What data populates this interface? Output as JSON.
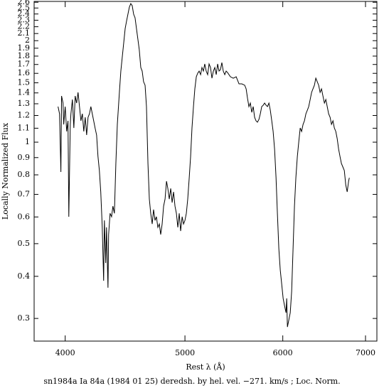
{
  "chart_data": {
    "type": "line",
    "xlabel": "Rest λ (Å)",
    "ylabel": "Locally Normalized Flux",
    "caption": "sn1984a Ia 84a (1984 01 25) deredsh. by hel. vel.  −271. km/s ;  Loc. Norm.",
    "xscale": "log",
    "yscale": "log",
    "xlim": [
      3775,
      7150
    ],
    "ylim": [
      0.257,
      2.615
    ],
    "xticks": [
      4000,
      5000,
      6000,
      7000
    ],
    "yticks": [
      0.3,
      0.4,
      0.5,
      0.6,
      0.7,
      0.8,
      0.9,
      1,
      1.1,
      1.2,
      1.3,
      1.4,
      1.5,
      1.6,
      1.7,
      1.8,
      1.9,
      2,
      2.1,
      2.2,
      2.3,
      2.4,
      2.5,
      2.6
    ],
    "x": [
      3947,
      3958,
      3968,
      3973,
      3984,
      3989,
      4000,
      4011,
      4021,
      4027,
      4038,
      4043,
      4054,
      4065,
      4075,
      4086,
      4097,
      4108,
      4119,
      4130,
      4141,
      4152,
      4163,
      4174,
      4185,
      4196,
      4207,
      4218,
      4229,
      4241,
      4252,
      4263,
      4274,
      4286,
      4297,
      4303,
      4314,
      4320,
      4332,
      4337,
      4349,
      4361,
      4372,
      4384,
      4396,
      4408,
      4425,
      4437,
      4449,
      4461,
      4473,
      4484,
      4496,
      4508,
      4520,
      4532,
      4544,
      4556,
      4568,
      4580,
      4592,
      4605,
      4617,
      4629,
      4642,
      4654,
      4667,
      4679,
      4691,
      4704,
      4716,
      4729,
      4741,
      4754,
      4767,
      4779,
      4792,
      4805,
      4818,
      4831,
      4843,
      4856,
      4869,
      4882,
      4895,
      4908,
      4921,
      4934,
      4947,
      4960,
      4974,
      4987,
      5000,
      5013,
      5026,
      5040,
      5053,
      5066,
      5080,
      5093,
      5107,
      5120,
      5134,
      5148,
      5161,
      5175,
      5188,
      5202,
      5216,
      5230,
      5244,
      5258,
      5272,
      5286,
      5300,
      5314,
      5328,
      5342,
      5356,
      5370,
      5385,
      5399,
      5413,
      5442,
      5471,
      5501,
      5530,
      5559,
      5589,
      5604,
      5618,
      5633,
      5648,
      5663,
      5678,
      5693,
      5708,
      5723,
      5739,
      5754,
      5769,
      5785,
      5800,
      5816,
      5831,
      5847,
      5862,
      5878,
      5893,
      5909,
      5925,
      5940,
      5956,
      5972,
      5988,
      6004,
      6020,
      6036,
      6044,
      6052,
      6068,
      6084,
      6100,
      6116,
      6132,
      6148,
      6165,
      6181,
      6198,
      6214,
      6231,
      6247,
      6264,
      6281,
      6297,
      6314,
      6331,
      6347,
      6364,
      6381,
      6398,
      6415,
      6432,
      6449,
      6466,
      6484,
      6501,
      6518,
      6535,
      6553,
      6570,
      6588,
      6605,
      6623,
      6640,
      6658,
      6675,
      6693,
      6711,
      6729,
      6747,
      6765,
      6783,
      6792
    ],
    "series": [
      {
        "color": "#000000",
        "values": [
          1.275,
          1.214,
          0.816,
          1.371,
          1.306,
          1.129,
          1.275,
          1.076,
          1.157,
          0.601,
          1.129,
          1.214,
          1.338,
          1.102,
          1.371,
          1.306,
          1.405,
          1.275,
          1.157,
          1.214,
          1.076,
          1.185,
          1.05,
          1.185,
          1.214,
          1.275,
          1.214,
          1.157,
          1.102,
          1.05,
          0.907,
          0.824,
          0.712,
          0.559,
          0.388,
          0.586,
          0.438,
          0.559,
          0.37,
          0.532,
          0.615,
          0.601,
          0.646,
          0.615,
          0.864,
          1.129,
          1.405,
          1.625,
          1.791,
          1.973,
          2.174,
          2.282,
          2.396,
          2.515,
          2.577,
          2.54,
          2.396,
          2.339,
          2.174,
          2.022,
          1.88,
          1.665,
          1.625,
          1.511,
          1.475,
          1.275,
          0.864,
          0.678,
          0.615,
          0.572,
          0.631,
          0.586,
          0.601,
          0.559,
          0.572,
          0.532,
          0.572,
          0.646,
          0.678,
          0.766,
          0.729,
          0.678,
          0.729,
          0.662,
          0.712,
          0.646,
          0.615,
          0.559,
          0.615,
          0.545,
          0.601,
          0.572,
          0.586,
          0.615,
          0.678,
          0.784,
          0.907,
          1.102,
          1.275,
          1.439,
          1.563,
          1.601,
          1.625,
          1.586,
          1.665,
          1.625,
          1.706,
          1.625,
          1.586,
          1.706,
          1.665,
          1.548,
          1.625,
          1.665,
          1.586,
          1.706,
          1.625,
          1.641,
          1.722,
          1.625,
          1.586,
          1.625,
          1.609,
          1.563,
          1.548,
          1.563,
          1.489,
          1.489,
          1.475,
          1.439,
          1.351,
          1.275,
          1.306,
          1.226,
          1.275,
          1.185,
          1.157,
          1.146,
          1.168,
          1.214,
          1.275,
          1.287,
          1.306,
          1.287,
          1.275,
          1.306,
          1.244,
          1.157,
          1.076,
          0.953,
          0.784,
          0.615,
          0.483,
          0.417,
          0.379,
          0.344,
          0.327,
          0.312,
          0.344,
          0.283,
          0.297,
          0.312,
          0.361,
          0.483,
          0.646,
          0.784,
          0.907,
          1.0,
          1.102,
          1.076,
          1.129,
          1.157,
          1.214,
          1.244,
          1.275,
          1.338,
          1.405,
          1.439,
          1.475,
          1.548,
          1.511,
          1.475,
          1.405,
          1.439,
          1.371,
          1.306,
          1.338,
          1.275,
          1.214,
          1.185,
          1.129,
          1.157,
          1.102,
          1.076,
          1.025,
          0.953,
          0.907,
          0.864,
          0.844,
          0.824,
          0.747,
          0.712,
          0.766,
          0.784
        ]
      }
    ]
  }
}
